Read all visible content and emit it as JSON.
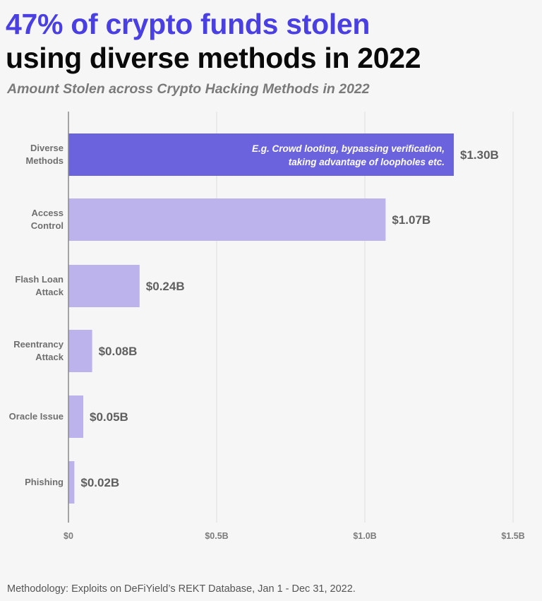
{
  "header": {
    "title_line1": "47% of crypto funds stolen",
    "title_line2": "using diverse methods in 2022",
    "subtitle": "Amount Stolen across Crypto Hacking Methods in 2022"
  },
  "footer": {
    "methodology": "Methodology: Exploits on DeFiYield’s REKT Database, Jan 1 - Dec 31, 2022."
  },
  "colors": {
    "highlight_bar": "#6b63de",
    "bar": "#bcb3ec",
    "title_accent": "#4a3fe0",
    "axis": "#888888",
    "grid": "#dddddd"
  },
  "chart_data": {
    "type": "bar",
    "orientation": "horizontal",
    "title": "47% of crypto funds stolen using diverse methods in 2022",
    "subtitle": "Amount Stolen across Crypto Hacking Methods in 2022",
    "unit": "billion USD",
    "categories": [
      [
        "Diverse",
        "Methods"
      ],
      [
        "Access",
        "Control"
      ],
      [
        "Flash Loan",
        "Attack"
      ],
      [
        "Reentrancy",
        "Attack"
      ],
      [
        "Oracle Issue"
      ],
      [
        "Phishing"
      ]
    ],
    "values": [
      1.3,
      1.07,
      0.24,
      0.08,
      0.05,
      0.02
    ],
    "value_labels": [
      "$1.30B",
      "$1.07B",
      "$0.24B",
      "$0.08B",
      "$0.05B",
      "$0.02B"
    ],
    "highlighted_index": 0,
    "annotation": {
      "category_index": 0,
      "lines": [
        "E.g. Crowd looting, bypassing verification,",
        "taking advantage of loopholes etc."
      ]
    },
    "xlim": [
      0,
      1.5
    ],
    "x_ticks": [
      0,
      0.5,
      1.0,
      1.5
    ],
    "x_tick_labels": [
      "$0",
      "$0.5B",
      "$1.0B",
      "$1.5B"
    ],
    "grid": true,
    "legend": "none"
  }
}
